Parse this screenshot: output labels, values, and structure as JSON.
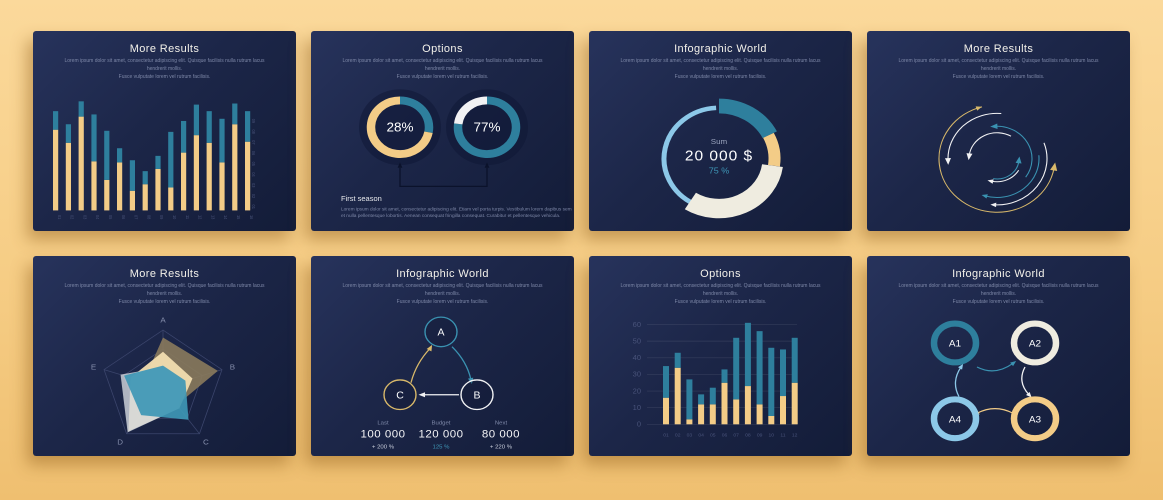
{
  "palette": {
    "teal": "#2e7f9d",
    "teal_bright": "#3a92b1",
    "yellow": "#f3cc87",
    "gold": "#d9b96a",
    "cream": "#efece0",
    "white": "#f2f2f4",
    "light_blue": "#8cc8e8",
    "brown": "#8a7a5c",
    "muted": "#7e88a8",
    "tick": "#49537a",
    "grid": "#3b456c",
    "dark_line": "#0b122b",
    "accent_text": "#3f98b8"
  },
  "common": {
    "subtitle_line1": "Lorem ipsum dolor sit amet, consectetur adipiscing elit. Quisque facilisis nulla rutrum lacus hendrerit mollis.",
    "subtitle_line2": "Fusce vulputate lorem vel rutrum facilisis."
  },
  "slides": [
    {
      "title": "More Results"
    },
    {
      "title": "Options"
    },
    {
      "title": "Infographic World"
    },
    {
      "title": "More Results"
    },
    {
      "title": "More Results"
    },
    {
      "title": "Infographic World"
    },
    {
      "title": "Options"
    },
    {
      "title": "Infographic World"
    }
  ],
  "chart_data": [
    {
      "type": "stacked_bar",
      "title": "More Results",
      "x_labels": [
        "01",
        "02",
        "03",
        "04",
        "05",
        "06",
        "07",
        "08",
        "09",
        "10",
        "11",
        "12",
        "13",
        "14",
        "15",
        "16"
      ],
      "right_labels": [
        "01",
        "02",
        "03",
        "04",
        "05",
        "06",
        "07",
        "08",
        "09"
      ],
      "series": [
        {
          "name": "bottom",
          "color": "yellow",
          "values": [
            74,
            62,
            86,
            45,
            28,
            44,
            18,
            24,
            38,
            21,
            53,
            69,
            62,
            44,
            79,
            63
          ]
        },
        {
          "name": "top",
          "color": "teal",
          "values": [
            17,
            17,
            14,
            43,
            45,
            13,
            28,
            12,
            12,
            51,
            29,
            28,
            29,
            40,
            19,
            28
          ]
        }
      ],
      "ylim": [
        0,
        100
      ],
      "grid": false,
      "rotate_x_labels": true
    },
    {
      "type": "donut_pair",
      "title": "Options",
      "donuts": [
        {
          "label": "28%",
          "percent": 28,
          "main_color": "teal",
          "rest_color": "yellow"
        },
        {
          "label": "77%",
          "percent": 77,
          "main_color": "teal",
          "rest_color": "white"
        }
      ],
      "note_title": "First season",
      "note_line1": "Lorem ipsum dolor sit amet, consectetur adipiscing elit. Etiam vel porta turpis. Vestibulum lorem dapibus sem",
      "note_line2": "et nulla pellentesque lobortis. Aenean consequat fringilla consequat. Curabitur et pellentesque vehicula."
    },
    {
      "type": "donut_progress",
      "title": "Infographic World",
      "center": {
        "label": "Sum",
        "value": "20 000 $",
        "percent": "75 %"
      },
      "segments": [
        {
          "color": "light_blue",
          "from": 207,
          "to": 357,
          "width": 5,
          "r": 55
        },
        {
          "color": "teal",
          "from": 0,
          "to": 63,
          "width": 16,
          "r": 57
        },
        {
          "color": "yellow",
          "from": 63,
          "to": 98,
          "width": 12,
          "r": 55.5
        },
        {
          "color": "cream",
          "from": 98,
          "to": 212,
          "width": 21,
          "r": 54
        }
      ]
    },
    {
      "type": "circular_arrows",
      "title": "More Results",
      "arcs": [
        {
          "r": 58,
          "color": "gold",
          "a0": 345,
          "a1": 100,
          "cw": 0,
          "arrow": 6
        },
        {
          "r": 49,
          "color": "white",
          "a0": 5,
          "a1": 268,
          "cw": 0,
          "arrow": 5
        },
        {
          "r": 50,
          "color": "white",
          "a0": 70,
          "a1": 183,
          "cw": 1,
          "arrow": 4
        },
        {
          "r": 35,
          "color": "teal_bright",
          "a0": 125,
          "a1": 357,
          "cw": 0,
          "arrow": 5
        },
        {
          "r": 28,
          "color": "white",
          "a0": 30,
          "a1": 277,
          "cw": 0,
          "arrow": 5
        },
        {
          "r": 22,
          "color": "teal_bright",
          "a0": 190,
          "a1": 97,
          "cw": 0,
          "arrow": 5
        },
        {
          "r": 42,
          "color": "teal_bright",
          "a0": 85,
          "a1": 196,
          "cw": 1,
          "arrow": 4
        },
        {
          "r": 25,
          "color": "white",
          "a0": 120,
          "a1": 193,
          "cw": 1,
          "arrow": 4
        }
      ],
      "extra_arrows": [
        {
          "r": 58,
          "angle": 341,
          "cw": 1,
          "color": "gold",
          "size": 4
        }
      ]
    },
    {
      "type": "radar",
      "title": "More Results",
      "axes": [
        "A",
        "B",
        "C",
        "D",
        "E"
      ],
      "rings": 3,
      "series": [
        {
          "color": "brown",
          "opacity": 0.9,
          "values": [
            0.87,
            0.93,
            0.38,
            0.35,
            0.33
          ]
        },
        {
          "color": "#f2ddb0",
          "opacity": 0.95,
          "values": [
            0.62,
            0.5,
            0.45,
            0.95,
            0.55
          ]
        },
        {
          "color": "#d5d9e0",
          "opacity": 0.8,
          "values": [
            0.35,
            0.3,
            0.45,
            0.97,
            0.72
          ]
        },
        {
          "color": "#3e97b5",
          "opacity": 0.92,
          "values": [
            0.38,
            0.38,
            0.7,
            0.6,
            0.66
          ]
        }
      ]
    },
    {
      "type": "cycle_triangle",
      "title": "Infographic World",
      "nodes": [
        {
          "label": "A",
          "color": "teal_bright"
        },
        {
          "label": "B",
          "color": "white"
        },
        {
          "label": "C",
          "color": "gold"
        }
      ],
      "stats": [
        {
          "label": "Last",
          "value": "100 000",
          "delta": "+ 200 %",
          "delta_style": "plain"
        },
        {
          "label": "Budget",
          "value": "120 000",
          "delta": "125 %",
          "delta_style": "teal"
        },
        {
          "label": "Next",
          "value": "80 000",
          "delta": "+ 220 %",
          "delta_style": "plain"
        }
      ]
    },
    {
      "type": "stacked_bar",
      "title": "Options",
      "x_labels": [
        "01",
        "02",
        "03",
        "04",
        "05",
        "06",
        "07",
        "08",
        "09",
        "10",
        "11",
        "12"
      ],
      "y_ticks": [
        0,
        10,
        20,
        30,
        40,
        50,
        60
      ],
      "series": [
        {
          "name": "bottom",
          "color": "yellow",
          "values": [
            16,
            34,
            3,
            12,
            12,
            25,
            15,
            23,
            12,
            5,
            17,
            25
          ]
        },
        {
          "name": "top",
          "color": "teal",
          "values": [
            19,
            9,
            24,
            6,
            10,
            8,
            37,
            38,
            44,
            41,
            28,
            27
          ]
        }
      ],
      "ylim": [
        0,
        65
      ],
      "grid": true,
      "rotate_x_labels": false
    },
    {
      "type": "cycle_grid",
      "title": "Infographic World",
      "nodes": [
        {
          "label": "A1",
          "color": "teal"
        },
        {
          "label": "A2",
          "color": "cream"
        },
        {
          "label": "A3",
          "color": "yellow"
        },
        {
          "label": "A4",
          "color": "light_blue"
        }
      ]
    }
  ]
}
